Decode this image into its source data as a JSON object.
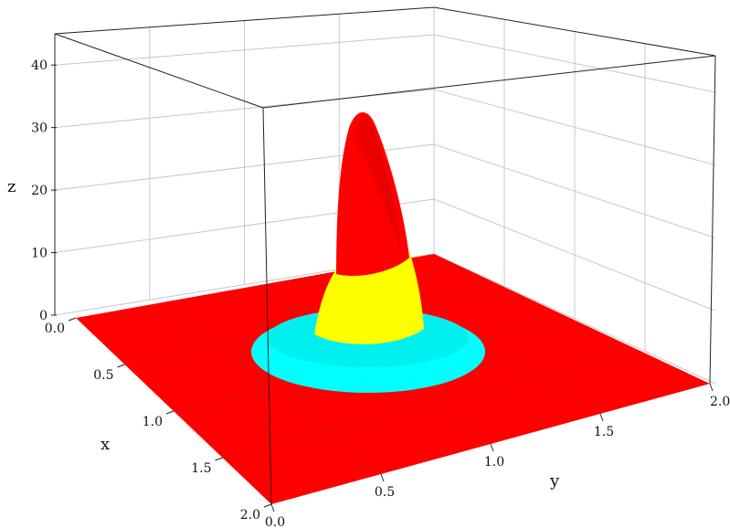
{
  "chart_data": {
    "type": "surface3d",
    "title": "",
    "xlabel": "x",
    "ylabel": "y",
    "zlabel": "z",
    "xlim": [
      0,
      2
    ],
    "ylim": [
      0,
      2
    ],
    "zlim": [
      0,
      45
    ],
    "x_ticks": [
      "0.0",
      "0.5",
      "1.0",
      "1.5",
      "2.0"
    ],
    "y_ticks": [
      "0.0",
      "0.5",
      "1.0",
      "1.5",
      "2.0"
    ],
    "z_ticks": [
      "0",
      "10",
      "20",
      "30",
      "40"
    ],
    "grid": true,
    "surface": {
      "shape": "single peak",
      "peak_center": [
        1.0,
        1.0
      ],
      "peak_height": 32,
      "base_height": 0
    },
    "color_bands": [
      {
        "name": "base",
        "color": "#ff0000"
      },
      {
        "name": "ring",
        "color": "#00ffff"
      },
      {
        "name": "mid",
        "color": "#ffff00"
      },
      {
        "name": "top",
        "color": "#ff0000"
      }
    ]
  }
}
